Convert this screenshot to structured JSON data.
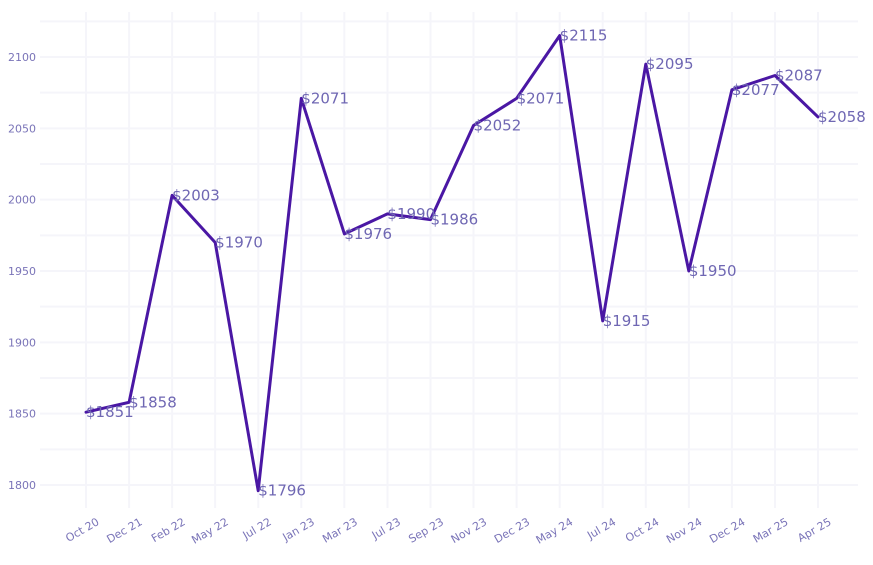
{
  "chart_data": {
    "type": "line",
    "title": "",
    "xlabel": "",
    "ylabel": "",
    "categories": [
      "Oct 20",
      "Dec 21",
      "Feb 22",
      "May 22",
      "Jul 22",
      "Jan 23",
      "Mar 23",
      "Jul 23",
      "Sep 23",
      "Nov 23",
      "Dec 23",
      "May 24",
      "Jul 24",
      "Oct 24",
      "Nov 24",
      "Dec 24",
      "Mar 25",
      "Apr 25"
    ],
    "series": [
      {
        "values": [
          1851,
          1858,
          2003,
          1970,
          1796,
          2071,
          1976,
          1990,
          1986,
          2052,
          2071,
          2115,
          1915,
          2095,
          1950,
          2077,
          2087,
          2058
        ],
        "labels": [
          "$1851",
          "$1858",
          "$2003",
          "$1970",
          "$1796",
          "$2071",
          "$1976",
          "$1990",
          "$1986",
          "$2052",
          "$2071",
          "$2115",
          "$1915",
          "$2095",
          "$1950",
          "$2077",
          "$2087",
          "$2058"
        ]
      }
    ],
    "yticks": [
      1800,
      1850,
      1900,
      1950,
      2000,
      2050,
      2100
    ],
    "ylim": [
      1780,
      2125
    ],
    "grid": true,
    "line_color": "#4a17a4"
  }
}
